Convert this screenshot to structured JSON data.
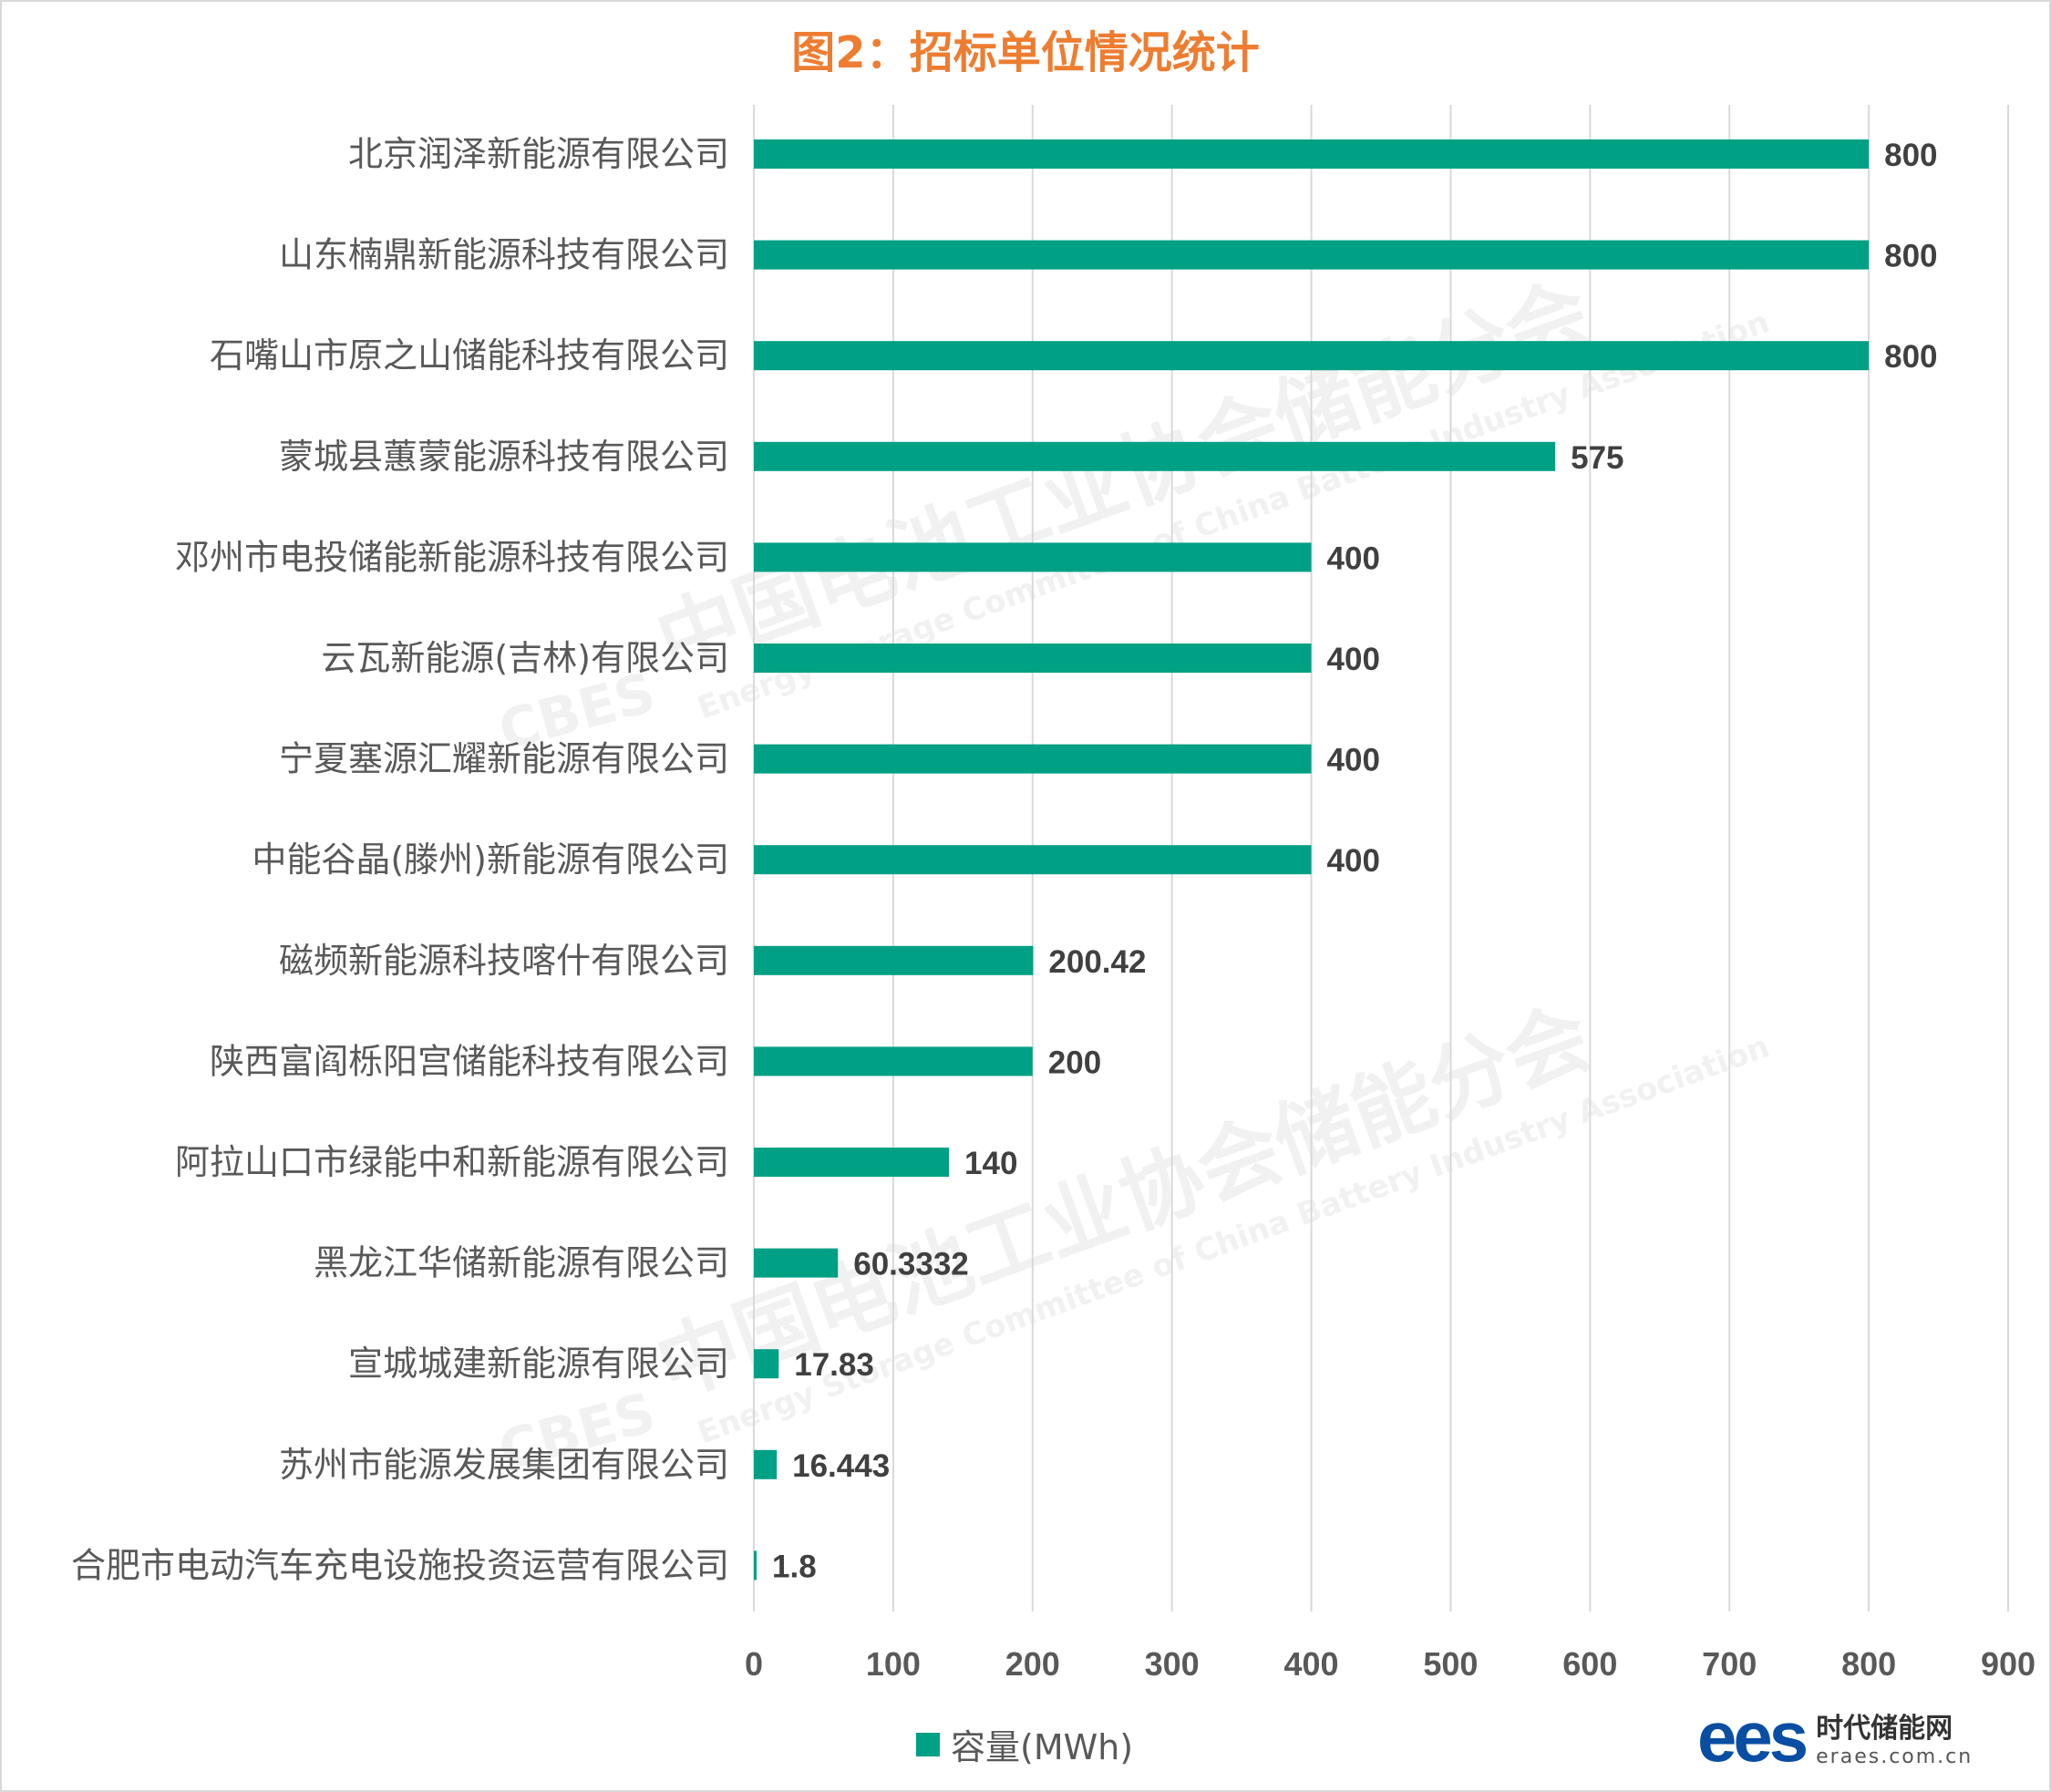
{
  "chart_data": {
    "type": "bar",
    "orientation": "horizontal",
    "title": "图2：招标单位情况统计",
    "categories": [
      "北京润泽新能源有限公司",
      "山东楠鼎新能源科技有限公司",
      "石嘴山市原之山储能科技有限公司",
      "蒙城县蕙蒙能源科技有限公司",
      "邓州市电投储能新能源科技有限公司",
      "云瓦新能源(吉林)有限公司",
      "宁夏塞源汇耀新能源有限公司",
      "中能谷晶(滕州)新能源有限公司",
      "磁频新能源科技喀什有限公司",
      "陕西富阎栎阳宫储能科技有限公司",
      "阿拉山口市绿能中和新能源有限公司",
      "黑龙江华储新能源有限公司",
      "宣城城建新能源有限公司",
      "苏州市能源发展集团有限公司",
      "合肥市电动汽车充电设施投资运营有限公司"
    ],
    "values": [
      800,
      800,
      800,
      575,
      400,
      400,
      400,
      400,
      200.42,
      200,
      140,
      60.3332,
      17.83,
      16.443,
      1.8
    ],
    "value_labels": [
      "800",
      "800",
      "800",
      "575",
      "400",
      "400",
      "400",
      "400",
      "200.42",
      "200",
      "140",
      "60.3332",
      "17.83",
      "16.443",
      "1.8"
    ],
    "xlim": [
      0,
      900
    ],
    "xticks": [
      "0",
      "100",
      "200",
      "300",
      "400",
      "500",
      "600",
      "700",
      "800",
      "900"
    ],
    "grid": true,
    "legend": {
      "label": "容量(MWh)",
      "position": "bottom"
    },
    "colors": {
      "bar": "#00a085",
      "title": "#ed7d31",
      "grid": "#d9d9d9",
      "text": "#595959",
      "value_text": "#404040"
    }
  },
  "watermark": {
    "cn": "中国电池工业协会储能分会",
    "en": "Energy Storage Committee of China Battery Industry Association",
    "mark": "CBES"
  },
  "logo": {
    "mark": "ees",
    "name": "时代储能网",
    "url": "eraes.com.cn"
  }
}
